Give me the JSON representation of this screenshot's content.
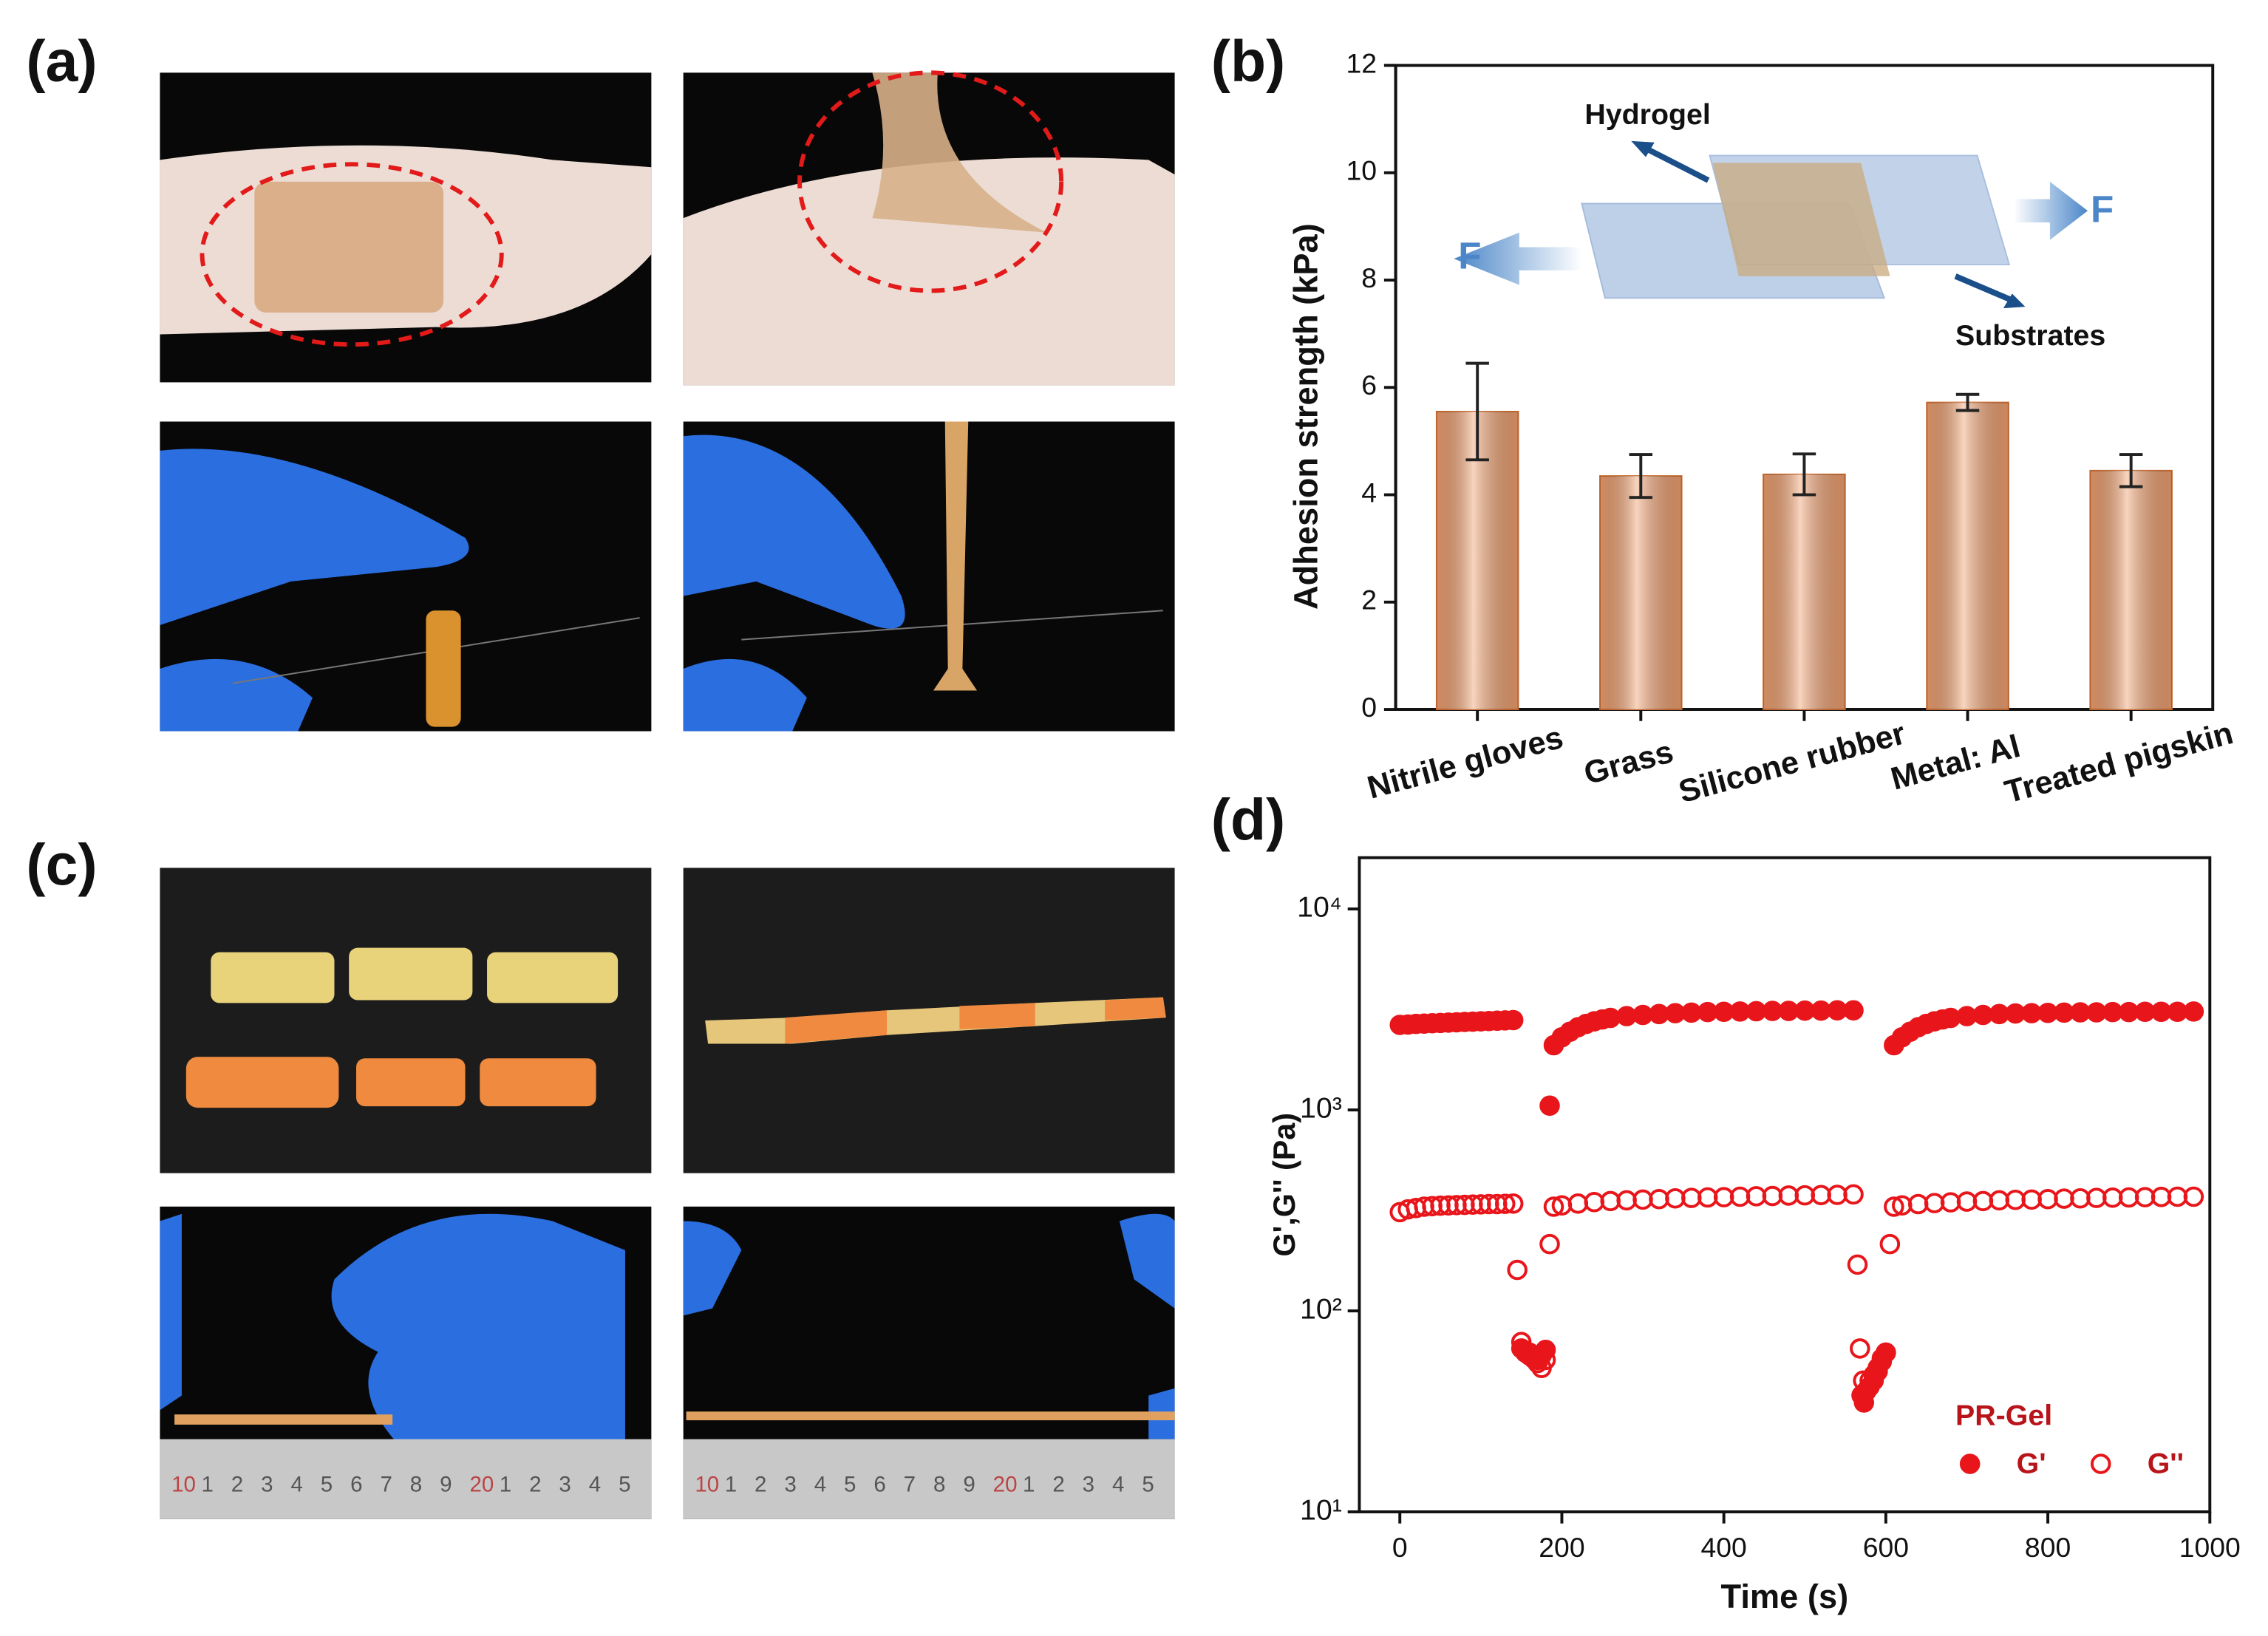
{
  "panel_labels": [
    "(a)",
    "(b)",
    "(c)",
    "(d)"
  ],
  "ruler_labels": [
    "10",
    "1",
    "2",
    "3",
    "4",
    "5",
    "6",
    "7",
    "8",
    "9",
    "20",
    "1",
    "2",
    "3",
    "4",
    "5"
  ],
  "chart_data": [
    {
      "type": "bar",
      "ylabel": "Adhesion strength (kPa)",
      "categories": [
        "Nitrile gloves",
        "Grass",
        "Silicone rubber",
        "Metal: Al",
        "Treated pigskin"
      ],
      "values": [
        5.55,
        4.35,
        4.38,
        5.72,
        4.45
      ],
      "errors": [
        0.9,
        0.4,
        0.38,
        0.15,
        0.3
      ],
      "color": "#f0a070",
      "ylim": [
        0,
        12
      ],
      "yticks": [
        0,
        2,
        4,
        6,
        8,
        10,
        12
      ],
      "annotations": [
        "Hydrogel",
        "Substrates",
        "F",
        "F"
      ]
    },
    {
      "type": "scatter",
      "xlabel": "Time (s)",
      "ylabel": "G',G'' (Pa)",
      "log_y": true,
      "xlim": [
        -50,
        1000
      ],
      "xticks": [
        0,
        200,
        400,
        600,
        800,
        1000
      ],
      "ylim": [
        10,
        18000
      ],
      "yticks": [
        {
          "value": 10,
          "label": "10¹"
        },
        {
          "value": 100,
          "label": "10²"
        },
        {
          "value": 1000,
          "label": "10³"
        },
        {
          "value": 10000,
          "label": "10⁴"
        }
      ],
      "legend_title": "PR-Gel",
      "legend": "lower right",
      "series": [
        {
          "name": "G'",
          "color": "#e8161b",
          "filled": true,
          "x": [
            0,
            10,
            20,
            30,
            40,
            50,
            60,
            70,
            80,
            90,
            100,
            110,
            120,
            130,
            140,
            150,
            155,
            160,
            165,
            170,
            175,
            180,
            185,
            190,
            200,
            210,
            220,
            230,
            240,
            250,
            260,
            280,
            300,
            320,
            340,
            360,
            380,
            400,
            420,
            440,
            460,
            480,
            500,
            520,
            540,
            560,
            570,
            573,
            576,
            580,
            585,
            590,
            595,
            600,
            610,
            620,
            630,
            640,
            650,
            660,
            670,
            680,
            700,
            720,
            740,
            760,
            780,
            800,
            820,
            840,
            860,
            880,
            900,
            920,
            940,
            960,
            980
          ],
          "values": [
            2650,
            2660,
            2680,
            2690,
            2700,
            2710,
            2720,
            2730,
            2740,
            2750,
            2760,
            2770,
            2780,
            2790,
            2800,
            65,
            62,
            60,
            58,
            57,
            60,
            64,
            1050,
            2100,
            2300,
            2450,
            2580,
            2680,
            2760,
            2820,
            2870,
            2930,
            2970,
            3000,
            3030,
            3050,
            3070,
            3080,
            3090,
            3100,
            3110,
            3110,
            3120,
            3120,
            3130,
            3130,
            38,
            35,
            40,
            42,
            45,
            50,
            56,
            62,
            2100,
            2300,
            2450,
            2580,
            2680,
            2760,
            2820,
            2870,
            2930,
            2970,
            3000,
            3020,
            3030,
            3040,
            3050,
            3060,
            3060,
            3070,
            3070,
            3080,
            3080,
            3080,
            3090
          ]
        },
        {
          "name": "G''",
          "color": "#e8161b",
          "filled": false,
          "x": [
            0,
            10,
            20,
            30,
            40,
            50,
            60,
            70,
            80,
            90,
            100,
            110,
            120,
            130,
            140,
            145,
            150,
            160,
            165,
            170,
            175,
            180,
            185,
            190,
            200,
            220,
            240,
            260,
            280,
            300,
            320,
            340,
            360,
            380,
            400,
            420,
            440,
            460,
            480,
            500,
            520,
            540,
            560,
            565,
            568,
            572,
            576,
            580,
            585,
            590,
            595,
            600,
            605,
            610,
            620,
            640,
            660,
            680,
            700,
            720,
            740,
            760,
            780,
            800,
            820,
            840,
            860,
            880,
            900,
            920,
            940,
            960,
            980
          ],
          "values": [
            310,
            320,
            325,
            330,
            332,
            334,
            335,
            336,
            337,
            338,
            339,
            340,
            340,
            341,
            342,
            160,
            70,
            62,
            58,
            55,
            52,
            57,
            215,
            330,
            335,
            342,
            348,
            352,
            355,
            358,
            360,
            363,
            365,
            367,
            368,
            370,
            372,
            373,
            375,
            376,
            377,
            378,
            380,
            170,
            65,
            45,
            40,
            45,
            48,
            52,
            58,
            62,
            215,
            330,
            335,
            340,
            344,
            347,
            350,
            352,
            355,
            357,
            358,
            360,
            362,
            363,
            365,
            366,
            367,
            368,
            369,
            370,
            370
          ]
        }
      ]
    }
  ]
}
